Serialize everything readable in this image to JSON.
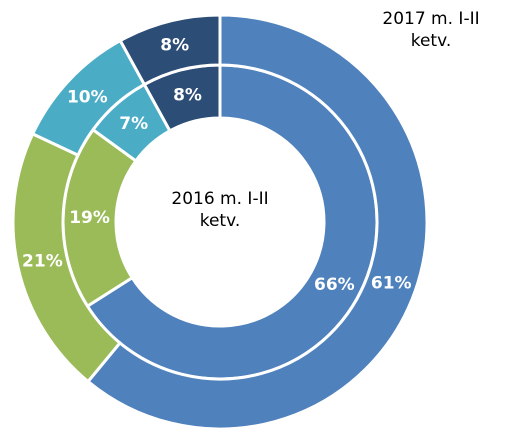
{
  "chart_data": {
    "type": "donut",
    "colors": [
      "#4f81bd",
      "#9bbb59",
      "#4bacc6",
      "#2c4d75"
    ],
    "series": [
      {
        "name": "2016 m. I-II ketv.",
        "values": [
          66,
          19,
          7,
          8
        ],
        "value_labels": [
          "66%",
          "19%",
          "7%",
          "8%"
        ]
      },
      {
        "name": "2017 m. I-II ketv.",
        "values": [
          61,
          21,
          10,
          8
        ],
        "value_labels": [
          "61%",
          "21%",
          "10%",
          "8%"
        ]
      }
    ]
  }
}
